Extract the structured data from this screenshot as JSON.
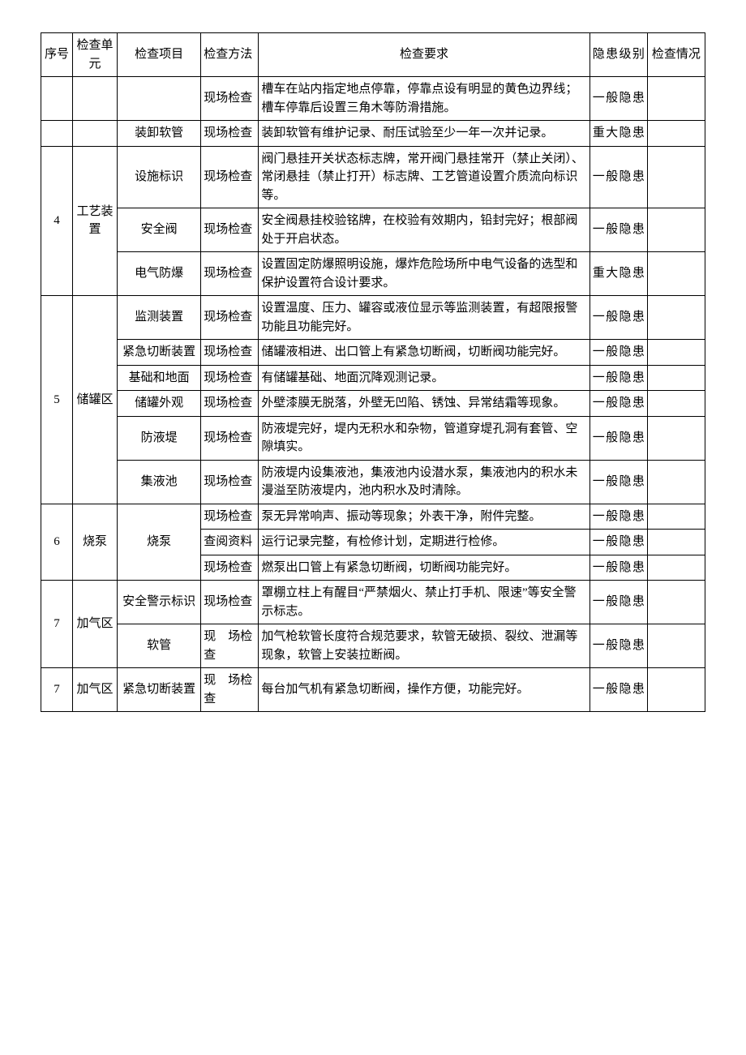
{
  "table": {
    "headers": {
      "seq": "序号",
      "unit": "检查单元",
      "item": "检查项目",
      "method": "检查方法",
      "req": "检查要求",
      "level": "隐患级别",
      "status": "检查情况"
    },
    "rows": [
      {
        "seq": "",
        "unit": "",
        "item": "",
        "method": "现场检查",
        "req": "槽车在站内指定地点停靠，停靠点设有明显的黄色边界线；槽车停靠后设置三角木等防滑措施。",
        "level": "一般隐患"
      },
      {
        "seq": "",
        "unit": "",
        "item": "装卸软管",
        "method": "现场检查",
        "req": "装卸软管有维护记录、耐压试验至少一年一次并记录。",
        "level": "重大隐患"
      },
      {
        "seq": "4",
        "unit": "工艺装置",
        "item": "设施标识",
        "method": "现场检查",
        "req": "阀门悬挂开关状态标志牌，常开阀门悬挂常开（禁止关闭）、常闭悬挂（禁止打开）标志牌、工艺管道设置介质流向标识等。",
        "level": "一般隐患"
      },
      {
        "seq": "",
        "unit": "",
        "item": "安全阀",
        "method": "现场检查",
        "req": "安全阀悬挂校验铭牌，在校验有效期内，铅封完好；根部阀处于开启状态。",
        "level": "一般隐患"
      },
      {
        "seq": "",
        "unit": "",
        "item": "电气防爆",
        "method": "现场检查",
        "req": "设置固定防爆照明设施，爆炸危险场所中电气设备的选型和保护设置符合设计要求。",
        "level": "重大隐患"
      },
      {
        "seq": "5",
        "unit": "储罐区",
        "item": "监测装置",
        "method": "现场检查",
        "req": "设置温度、压力、罐容或液位显示等监测装置，有超限报警功能且功能完好。",
        "level": "一般隐患"
      },
      {
        "seq": "",
        "unit": "",
        "item": "紧急切断装置",
        "method": "现场检查",
        "req": "储罐液相进、出口管上有紧急切断阀，切断阀功能完好。",
        "level": "一般隐患"
      },
      {
        "seq": "",
        "unit": "",
        "item": "基础和地面",
        "method": "现场检查",
        "req": "有储罐基础、地面沉降观测记录。",
        "level": "一般隐患"
      },
      {
        "seq": "",
        "unit": "",
        "item": "储罐外观",
        "method": "现场检查",
        "req": "外壁漆膜无脱落，外壁无凹陷、锈蚀、异常结霜等现象。",
        "level": "一般隐患"
      },
      {
        "seq": "",
        "unit": "",
        "item": "防液堤",
        "method": "现场检查",
        "req": "防液堤完好，堤内无积水和杂物，管道穿堤孔洞有套管、空隙填实。",
        "level": "一般隐患"
      },
      {
        "seq": "",
        "unit": "",
        "item": "集液池",
        "method": "现场检查",
        "req": "防液堤内设集液池，集液池内设潜水泵，集液池内的积水未漫溢至防液堤内，池内积水及时清除。",
        "level": "一般隐患"
      },
      {
        "seq": "6",
        "unit": "烧泵",
        "item": "烧泵",
        "method": "现场检查",
        "req": "泵无异常响声、振动等现象；外表干净，附件完整。",
        "level": "一般隐患"
      },
      {
        "seq": "",
        "unit": "",
        "item": "",
        "method": "查阅资料",
        "req": "运行记录完整，有检修计划，定期进行检修。",
        "level": "一般隐患"
      },
      {
        "seq": "",
        "unit": "",
        "item": "",
        "method": "现场检查",
        "req": "燃泵出口管上有紧急切断阀，切断阀功能完好。",
        "level": "一般隐患"
      },
      {
        "seq": "7",
        "unit": "加气区",
        "item": "安全警示标识",
        "method": "现场检查",
        "req": "罩棚立柱上有醒目“严禁烟火、禁止打手机、限速”等安全警示标志。",
        "level": "一般隐患"
      },
      {
        "seq": "",
        "unit": "",
        "item": "软管",
        "method": "现　场检查",
        "req": "加气枪软管长度符合规范要求，软管无破损、裂纹、泄漏等现象，软管上安装拉断阀。",
        "level": "一般隐患"
      },
      {
        "seq": "7",
        "unit": "加气区",
        "item": "紧急切断装置",
        "method": "现　场检查",
        "req": "每台加气机有紧急切断阀，操作方便，功能完好。",
        "level": "一般隐患"
      }
    ],
    "groups": [
      {
        "start": 0,
        "seqSpan": 1,
        "unitSpan": 1
      },
      {
        "start": 1,
        "seqSpan": 1,
        "unitSpan": 1
      },
      {
        "start": 2,
        "seqSpan": 3,
        "unitSpan": 3
      },
      {
        "start": 5,
        "seqSpan": 6,
        "unitSpan": 6
      },
      {
        "start": 11,
        "seqSpan": 3,
        "unitSpan": 3,
        "itemSpan": 3
      },
      {
        "start": 14,
        "seqSpan": 2,
        "unitSpan": 2
      },
      {
        "start": 16,
        "seqSpan": 1,
        "unitSpan": 1
      }
    ]
  }
}
